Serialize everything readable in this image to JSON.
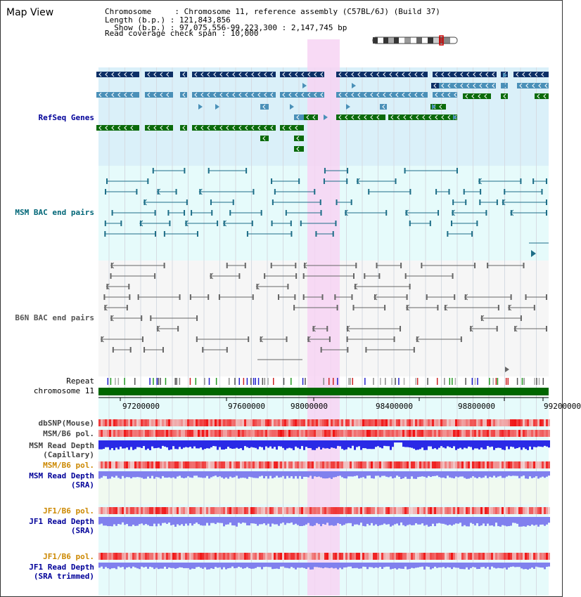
{
  "page": {
    "title": "Map View"
  },
  "info": {
    "chromosome": "Chromosome     : Chromosome 11, reference assembly (C57BL/6J) (Build 37)",
    "length": "Length (b.p.) : 121,843,856",
    "show": "  Show (b.p.) : 97,075,556-99,223,300 : 2,147,745 bp",
    "coverage": "Read coverage check span : 10,000"
  },
  "tracks": {
    "refseq": {
      "label": "RefSeq Genes",
      "color": "#000099"
    },
    "msm_bac": {
      "label": "MSM BAC end pairs",
      "color": "#006677"
    },
    "b6n_bac": {
      "label": "B6N BAC end pairs",
      "color": "#555555"
    },
    "repeat": {
      "label": "Repeat"
    },
    "chromosome": {
      "label": "chromosome 11",
      "color": "#006600"
    },
    "dbsnp": {
      "label": "dbSNP(Mouse)"
    },
    "msm_b6_pol": {
      "label": "MSM/B6 pol."
    },
    "msm_cap_1": {
      "label": "MSM Read Depth"
    },
    "msm_cap_2": {
      "label": "(Capillary)"
    },
    "msm_b6_pol2": {
      "label": "MSM/B6 pol.",
      "color": "#cc8800"
    },
    "msm_sra_1": {
      "label": "MSM Read Depth",
      "color": "#000099"
    },
    "msm_sra_2": {
      "label": "(SRA)",
      "color": "#000099"
    },
    "jf1_b6_pol": {
      "label": "JF1/B6 pol.",
      "color": "#cc8800"
    },
    "jf1_sra_1": {
      "label": "JF1 Read Depth",
      "color": "#000099"
    },
    "jf1_sra_2": {
      "label": "(SRA)",
      "color": "#000099"
    },
    "jf1_b6_pol2": {
      "label": "JF1/B6 pol.",
      "color": "#cc8800"
    },
    "jf1_trim_1": {
      "label": "JF1 Read Depth",
      "color": "#000099"
    },
    "jf1_trim_2": {
      "label": "(SRA trimmed)",
      "color": "#000099"
    }
  },
  "ruler": {
    "ticks": [
      "97200000",
      "97600000",
      "98000000",
      "98400000",
      "98800000",
      "99200000"
    ]
  },
  "colors": {
    "highlight": "#f7d4f3",
    "refseq_bg": "#daf0f9",
    "bac_bg": "#e6fbfb",
    "gene_navy": "#0c2f66",
    "gene_blue": "#4a90b8",
    "gene_green": "#0b6b0b",
    "msm_line": "#1e6e88",
    "b6n_line": "#666666",
    "depth_blue": "#2a2ae6",
    "depth_light": "#8080ee",
    "snp_red": "#ee4444"
  }
}
